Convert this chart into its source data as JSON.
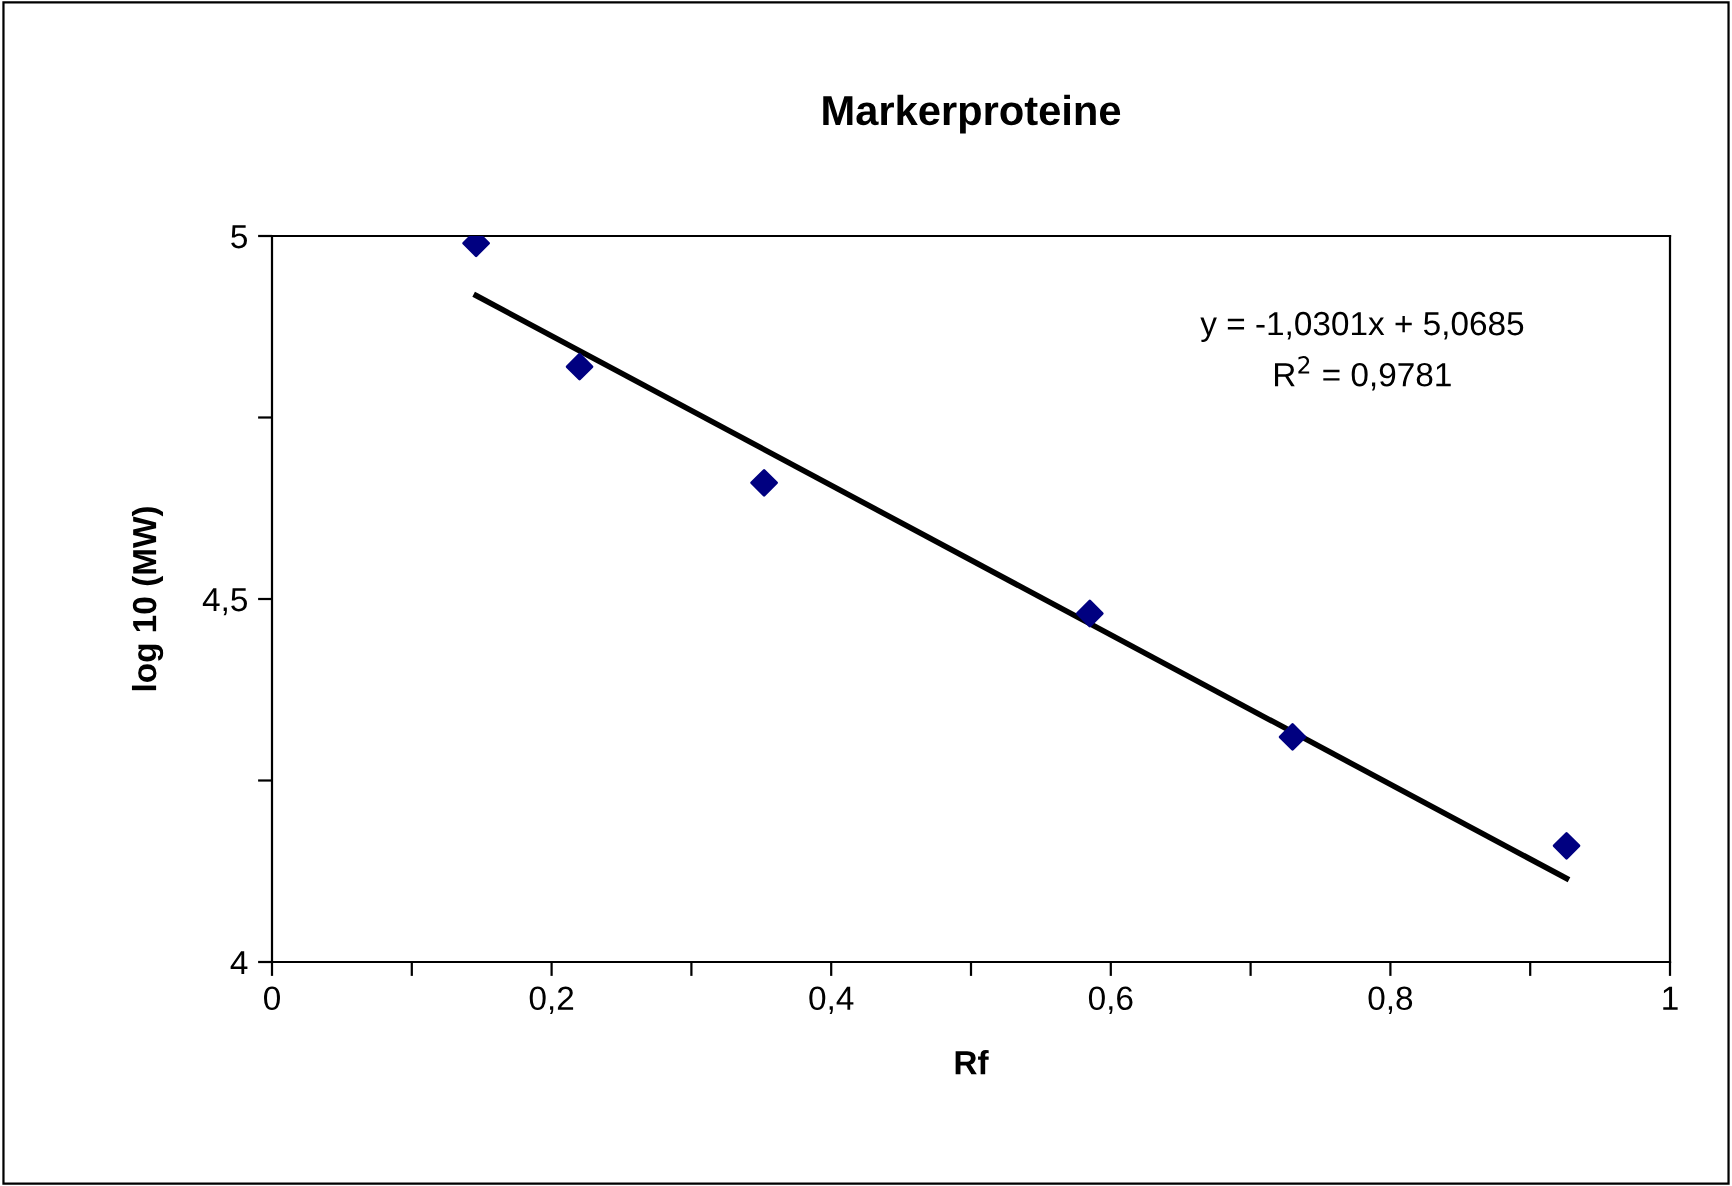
{
  "chart_data": {
    "type": "scatter",
    "title": "Markerproteine",
    "xlabel": "Rf",
    "ylabel": "log 10 (MW)",
    "series": [
      {
        "color": "#000080",
        "marker": "diamond",
        "x": [
          0.146,
          0.22,
          0.352,
          0.585,
          0.73,
          0.926
        ],
        "values": [
          4.99,
          4.82,
          4.66,
          4.48,
          4.31,
          4.16
        ]
      },
      {
        "type": "line",
        "color": "#000000",
        "marker": "none",
        "line_style": "solid",
        "x": [
          0.146,
          0.926
        ],
        "values": [
          4.918,
          4.115
        ]
      }
    ],
    "annotations": [
      "y = -1,0301x + 5,0685\nR$^{2}$ = 0,9781"
    ],
    "xlim": [
      0,
      1
    ],
    "xticks": [
      0,
      {
        "value": 0.1,
        "label": null
      },
      {
        "value": 0.2,
        "label": "0,2"
      },
      {
        "value": 0.3,
        "label": null
      },
      {
        "value": 0.4,
        "label": "0,4"
      },
      {
        "value": 0.5,
        "label": null
      },
      {
        "value": 0.6,
        "label": "0,6"
      },
      {
        "value": 0.7,
        "label": null
      },
      {
        "value": 0.8,
        "label": "0,8"
      },
      {
        "value": 0.9,
        "label": null
      },
      1
    ],
    "ylim": [
      4,
      5
    ],
    "yticks": [
      4,
      {
        "value": 4.25,
        "label": null
      },
      {
        "value": 4.5,
        "label": "4,5"
      },
      {
        "value": 4.75,
        "label": null
      },
      5
    ],
    "grid": false,
    "legend": false
  }
}
